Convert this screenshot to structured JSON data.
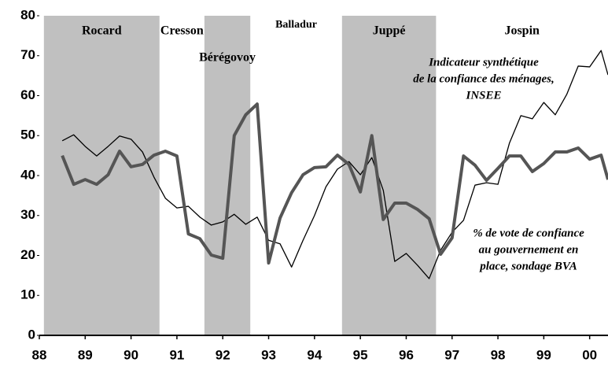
{
  "chart_data": {
    "type": "line",
    "x": [
      88.5,
      88.75,
      89,
      89.25,
      89.5,
      89.75,
      90,
      90.25,
      90.5,
      90.75,
      91,
      91.25,
      91.5,
      91.75,
      92,
      92.25,
      92.5,
      92.75,
      93,
      93.25,
      93.5,
      93.75,
      94,
      94.25,
      94.5,
      94.75,
      95,
      95.25,
      95.5,
      95.75,
      96,
      96.25,
      96.5,
      96.75,
      97,
      97.25,
      97.5,
      97.75,
      98,
      98.25,
      98.5,
      98.75,
      99,
      99.25,
      99.5,
      99.75,
      100,
      100.25,
      100.4
    ],
    "series": [
      {
        "name": "Indicateur synthétique de la confiance des ménages, INSEE",
        "color": "#000000",
        "values": [
          48.7,
          50.2,
          47.3,
          44.9,
          47.3,
          49.9,
          49.1,
          45.9,
          39.6,
          34.3,
          31.9,
          32.3,
          29.6,
          27.6,
          28.4,
          30.3,
          27.8,
          29.6,
          23.8,
          22.9,
          17.1,
          23.8,
          30.0,
          37.2,
          41.6,
          43.5,
          40.2,
          44.5,
          36.3,
          18.5,
          20.5,
          17.5,
          14.2,
          21.3,
          25.8,
          28.8,
          37.6,
          38.2,
          37.8,
          48.1,
          55.0,
          54.2,
          58.3,
          55.2,
          60.3,
          67.4,
          67.2,
          71.3,
          65.2
        ]
      },
      {
        "name": "% de vote de confiance au gouvernement en place, sondage BVA",
        "color": "#555555",
        "values": [
          45.0,
          37.8,
          39.0,
          37.8,
          40.2,
          46.1,
          42.2,
          42.8,
          45.1,
          46.1,
          44.9,
          25.4,
          24.2,
          20.1,
          19.3,
          50.0,
          55.2,
          57.9,
          18.1,
          29.4,
          35.7,
          40.2,
          42.0,
          42.2,
          45.1,
          42.8,
          35.9,
          50.0,
          29.0,
          33.1,
          33.1,
          31.5,
          29.2,
          20.3,
          24.4,
          44.9,
          42.6,
          38.8,
          41.8,
          44.9,
          44.9,
          41.0,
          43.0,
          45.9,
          45.9,
          46.9,
          44.1,
          45.1,
          39.0
        ]
      }
    ],
    "annotations": [
      {
        "lines": [
          "Indicateur synthétique",
          "de la confiance des ménages,",
          "INSEE"
        ]
      },
      {
        "lines": [
          "% de vote de confiance",
          "au gouvernement en",
          "place, sondage BVA"
        ]
      }
    ],
    "periods": [
      {
        "name": "Rocard",
        "start": 88.1,
        "end": 90.62,
        "shaded": true
      },
      {
        "name": "Cresson",
        "start": 90.62,
        "end": 91.6,
        "shaded": false
      },
      {
        "name": "Bérégovoy",
        "start": 91.6,
        "end": 92.6,
        "shaded": true
      },
      {
        "name": "Balladur",
        "start": 92.6,
        "end": 94.6,
        "shaded": false
      },
      {
        "name": "Juppé",
        "start": 94.6,
        "end": 96.65,
        "shaded": true
      },
      {
        "name": "Jospin",
        "start": 96.65,
        "end": 100.4,
        "shaded": false
      }
    ],
    "shade_color": "#c0c0c0",
    "xlim": [
      88,
      100.4
    ],
    "xticks": [
      88,
      89,
      90,
      91,
      92,
      93,
      94,
      95,
      96,
      97,
      98,
      99,
      {
        "value": 100,
        "label": "00"
      }
    ],
    "ylim": [
      0,
      80
    ],
    "yticks": [
      0,
      10,
      20,
      30,
      40,
      50,
      60,
      70,
      80
    ]
  }
}
